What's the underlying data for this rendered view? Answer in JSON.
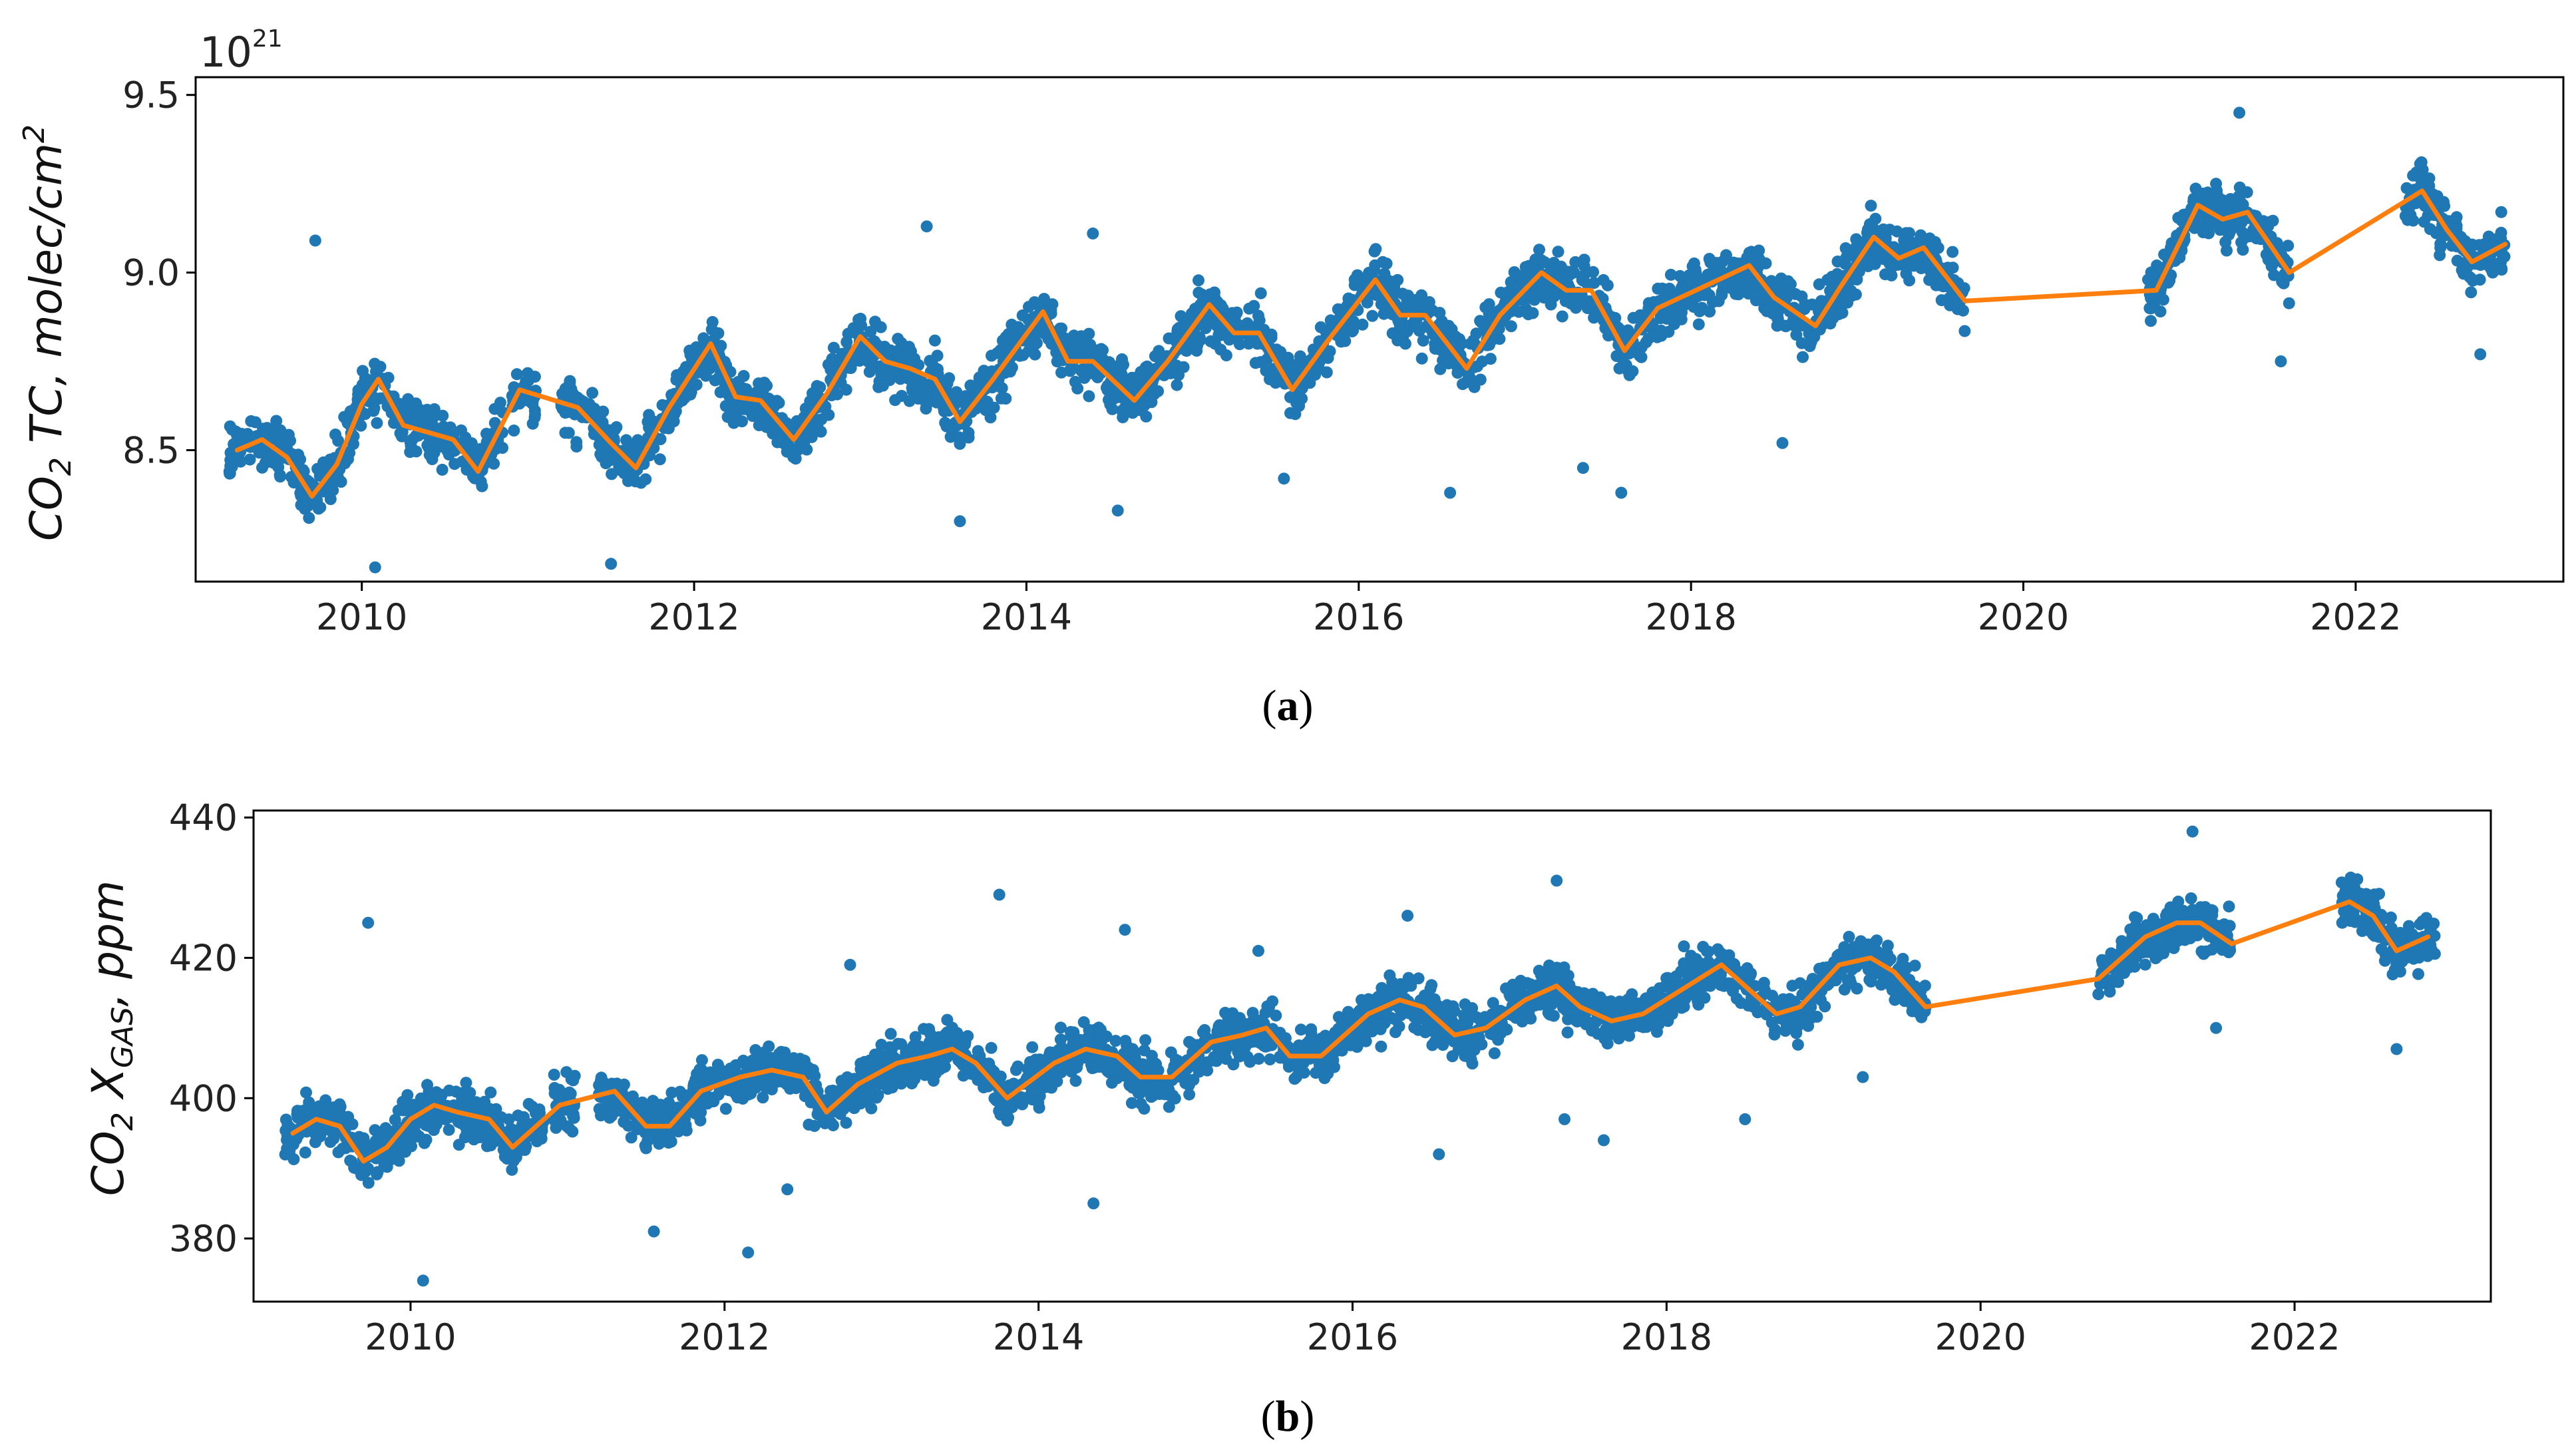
{
  "chart_data": [
    {
      "type": "scatter",
      "panel": "a",
      "caption_letter": "a",
      "ylabel_main": "CO",
      "ylabel_sub": "2",
      "ylabel_rest": " TC,  molec/cm",
      "ylabel_sup": "2",
      "offset_base": "10",
      "offset_exp": "21",
      "xlim": [
        2009.0,
        2023.25
      ],
      "ylim": [
        8.13,
        9.55
      ],
      "xticks": [
        2010,
        2012,
        2014,
        2016,
        2018,
        2020,
        2022
      ],
      "xtick_labels": [
        "2010",
        "2012",
        "2014",
        "2016",
        "2018",
        "2020",
        "2022"
      ],
      "yticks": [
        8.5,
        9.0,
        9.5
      ],
      "ytick_labels": [
        "8.5",
        "9.0",
        "9.5"
      ],
      "scatter_color": "#1f77b4",
      "line_color": "#ff7f0e",
      "series": [
        {
          "name": "observations",
          "kind": "scatter",
          "segments": [
            [
              2009.2,
              2010.85
            ],
            [
              2010.9,
              2011.05
            ],
            [
              2011.2,
              2019.65
            ],
            [
              2020.75,
              2021.6
            ],
            [
              2022.3,
              2022.9
            ]
          ],
          "noise": 0.12,
          "outliers": [
            [
              2009.72,
              9.09
            ],
            [
              2010.08,
              8.17
            ],
            [
              2011.5,
              8.18
            ],
            [
              2013.4,
              9.13
            ],
            [
              2013.6,
              8.3
            ],
            [
              2014.4,
              9.11
            ],
            [
              2014.55,
              8.33
            ],
            [
              2015.55,
              8.42
            ],
            [
              2016.55,
              8.38
            ],
            [
              2017.35,
              8.45
            ],
            [
              2017.58,
              8.38
            ],
            [
              2018.55,
              8.52
            ],
            [
              2021.3,
              9.45
            ],
            [
              2021.55,
              8.75
            ],
            [
              2022.75,
              8.77
            ]
          ]
        },
        {
          "name": "fit",
          "kind": "line",
          "x": [
            2009.25,
            2009.4,
            2009.55,
            2009.7,
            2009.85,
            2010.0,
            2010.1,
            2010.25,
            2010.4,
            2010.55,
            2010.7,
            2010.95,
            2011.3,
            2011.5,
            2011.65,
            2011.85,
            2012.1,
            2012.25,
            2012.4,
            2012.6,
            2012.8,
            2013.0,
            2013.15,
            2013.3,
            2013.45,
            2013.6,
            2013.8,
            2014.1,
            2014.25,
            2014.4,
            2014.65,
            2014.85,
            2015.1,
            2015.25,
            2015.4,
            2015.6,
            2015.8,
            2016.1,
            2016.25,
            2016.4,
            2016.65,
            2016.85,
            2017.1,
            2017.25,
            2017.4,
            2017.6,
            2017.8,
            2018.35,
            2018.5,
            2018.75,
            2018.9,
            2019.1,
            2019.25,
            2019.4,
            2019.65,
            2020.8,
            2021.05,
            2021.2,
            2021.35,
            2021.6,
            2022.4,
            2022.55,
            2022.7,
            2022.9
          ],
          "y": [
            8.5,
            8.53,
            8.48,
            8.37,
            8.46,
            8.63,
            8.7,
            8.57,
            8.55,
            8.53,
            8.44,
            8.67,
            8.62,
            8.52,
            8.45,
            8.62,
            8.8,
            8.65,
            8.64,
            8.53,
            8.66,
            8.82,
            8.75,
            8.73,
            8.7,
            8.58,
            8.7,
            8.89,
            8.75,
            8.75,
            8.64,
            8.75,
            8.91,
            8.83,
            8.83,
            8.67,
            8.8,
            8.98,
            8.88,
            8.88,
            8.73,
            8.88,
            9.0,
            8.95,
            8.95,
            8.78,
            8.9,
            9.02,
            8.93,
            8.85,
            8.96,
            9.1,
            9.04,
            9.07,
            8.92,
            8.95,
            9.19,
            9.15,
            9.17,
            9.0,
            9.23,
            9.12,
            9.03,
            9.08
          ]
        }
      ]
    },
    {
      "type": "scatter",
      "panel": "b",
      "caption_letter": "b",
      "ylabel_main": "CO",
      "ylabel_sub": "2",
      "ylabel_rest": " X",
      "ylabel_sub2": "GAS",
      "ylabel_rest2": ",  ppm",
      "xlim": [
        2009.0,
        2023.25
      ],
      "ylim": [
        371,
        441
      ],
      "xticks": [
        2010,
        2012,
        2014,
        2016,
        2018,
        2020,
        2022
      ],
      "xtick_labels": [
        "2010",
        "2012",
        "2014",
        "2016",
        "2018",
        "2020",
        "2022"
      ],
      "yticks": [
        380,
        400,
        420,
        440
      ],
      "ytick_labels": [
        "380",
        "400",
        "420",
        "440"
      ],
      "scatter_color": "#1f77b4",
      "line_color": "#ff7f0e",
      "series": [
        {
          "name": "observations",
          "kind": "scatter",
          "segments": [
            [
              2009.2,
              2010.85
            ],
            [
              2010.9,
              2011.05
            ],
            [
              2011.2,
              2019.65
            ],
            [
              2020.75,
              2021.6
            ],
            [
              2022.3,
              2022.9
            ]
          ],
          "noise": 5.5,
          "outliers": [
            [
              2009.73,
              425
            ],
            [
              2010.08,
              374
            ],
            [
              2011.55,
              381
            ],
            [
              2012.15,
              378
            ],
            [
              2012.4,
              387
            ],
            [
              2012.8,
              419
            ],
            [
              2013.75,
              429
            ],
            [
              2014.35,
              385
            ],
            [
              2014.55,
              424
            ],
            [
              2015.4,
              421
            ],
            [
              2016.35,
              426
            ],
            [
              2016.55,
              392
            ],
            [
              2017.3,
              431
            ],
            [
              2017.35,
              397
            ],
            [
              2017.6,
              394
            ],
            [
              2018.5,
              397
            ],
            [
              2019.25,
              403
            ],
            [
              2021.35,
              438
            ],
            [
              2021.5,
              410
            ],
            [
              2022.65,
              407
            ]
          ]
        },
        {
          "name": "fit",
          "kind": "line",
          "x": [
            2009.25,
            2009.4,
            2009.55,
            2009.7,
            2009.85,
            2010.0,
            2010.15,
            2010.3,
            2010.5,
            2010.65,
            2010.95,
            2011.3,
            2011.5,
            2011.65,
            2011.85,
            2012.1,
            2012.3,
            2012.5,
            2012.65,
            2012.85,
            2013.1,
            2013.3,
            2013.45,
            2013.6,
            2013.8,
            2014.1,
            2014.3,
            2014.5,
            2014.65,
            2014.85,
            2015.1,
            2015.3,
            2015.45,
            2015.6,
            2015.8,
            2016.1,
            2016.3,
            2016.45,
            2016.65,
            2016.85,
            2017.1,
            2017.3,
            2017.45,
            2017.65,
            2017.85,
            2018.35,
            2018.5,
            2018.7,
            2018.85,
            2019.1,
            2019.3,
            2019.45,
            2019.65,
            2020.75,
            2021.05,
            2021.25,
            2021.4,
            2021.6,
            2022.35,
            2022.5,
            2022.65,
            2022.85
          ],
          "y": [
            395,
            397,
            396,
            391,
            393,
            397,
            399,
            398,
            397,
            393,
            399,
            401,
            396,
            396,
            401,
            403,
            404,
            403,
            398,
            402,
            405,
            406,
            407,
            405,
            400,
            405,
            407,
            406,
            403,
            403,
            408,
            409,
            410,
            406,
            406,
            412,
            414,
            413,
            409,
            410,
            414,
            416,
            413,
            411,
            412,
            419,
            416,
            412,
            413,
            419,
            420,
            418,
            413,
            417,
            423,
            425,
            425,
            422,
            428,
            426,
            421,
            423
          ]
        }
      ]
    }
  ]
}
